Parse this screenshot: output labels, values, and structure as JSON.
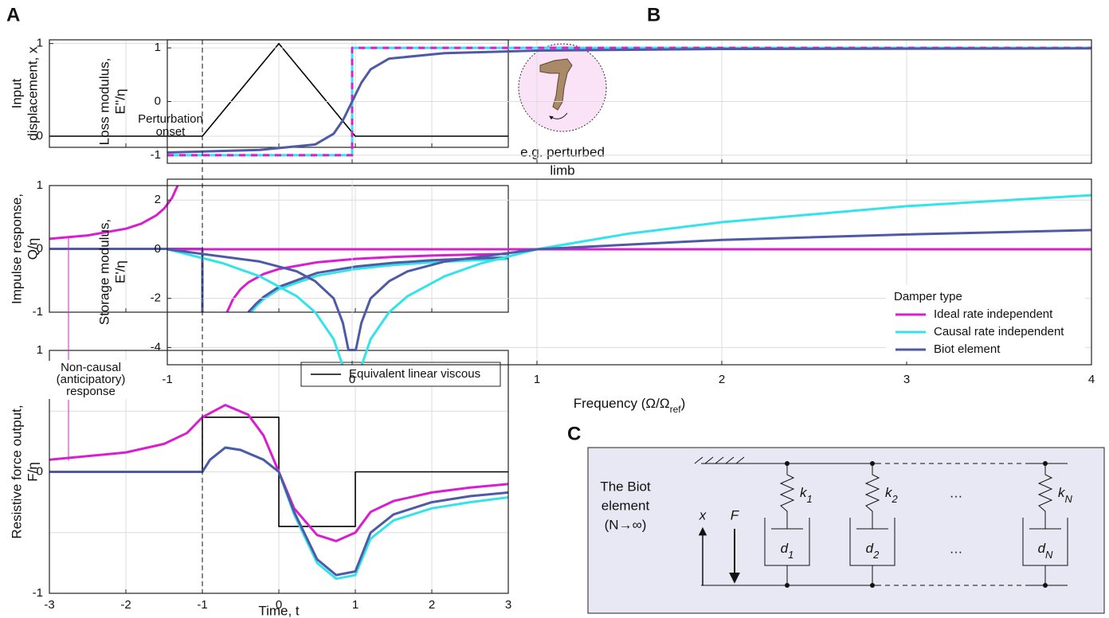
{
  "panel_labels": [
    "A",
    "B",
    "C"
  ],
  "limb_caption": [
    "e.g. perturbed",
    "limb"
  ],
  "chart_data": [
    {
      "type": "line",
      "ylabel": [
        "Input",
        "displacement, x"
      ],
      "xlim": [
        -3,
        3
      ],
      "xticks": [
        -3,
        -2,
        -1,
        0,
        1,
        2,
        3
      ],
      "ylim": [
        -0.12,
        1.04
      ],
      "yticks": [
        0,
        1
      ],
      "grid": true,
      "annotations": [
        {
          "text": [
            "Perturbation",
            "onset"
          ],
          "x": -1
        }
      ],
      "series": [
        {
          "color": "#000000",
          "x": [
            -3,
            -1,
            0,
            1,
            3
          ],
          "values": [
            0,
            0,
            1,
            0,
            0
          ]
        }
      ]
    },
    {
      "type": "line",
      "ylabel": [
        "Impulse response,",
        "Q/η"
      ],
      "xlim": [
        -3,
        3
      ],
      "xticks": [
        -3,
        -2,
        -1,
        0,
        1,
        2,
        3
      ],
      "ylim": [
        -1,
        1
      ],
      "yticks": [
        -1,
        0,
        1
      ],
      "grid": true,
      "series": [
        {
          "color": "#d81fcf",
          "x": [
            -3,
            -2.5,
            -2,
            -1.8,
            -1.6,
            -1.5,
            -1.4,
            -1.3,
            null,
            -0.7,
            -0.6,
            -0.5,
            -0.4,
            -0.2,
            0,
            0.5,
            1,
            1.5,
            2,
            2.5,
            3
          ],
          "values": [
            0.159,
            0.212,
            0.318,
            0.398,
            0.531,
            0.637,
            0.796,
            1.061,
            null,
            -1.061,
            -0.796,
            -0.637,
            -0.531,
            -0.398,
            -0.318,
            -0.212,
            -0.159,
            -0.127,
            -0.106,
            -0.091,
            -0.08
          ]
        },
        {
          "color": "#33e3ea",
          "x": [
            -3,
            -1,
            -1,
            null,
            -0.4,
            -0.3,
            -0.2,
            0,
            0.5,
            1,
            1.5,
            2,
            2.5,
            3
          ],
          "values": [
            0,
            0,
            -1,
            null,
            -1.061,
            -0.91,
            -0.796,
            -0.637,
            -0.424,
            -0.318,
            -0.255,
            -0.212,
            -0.182,
            -0.159
          ]
        },
        {
          "color": "#4f5aa6",
          "x": [
            -3,
            -1,
            -1,
            null,
            -0.4,
            -0.3,
            -0.2,
            0,
            0.5,
            1,
            1.5,
            2,
            2.5,
            3
          ],
          "values": [
            0,
            0,
            -1,
            null,
            -1.0,
            -0.87,
            -0.76,
            -0.6,
            -0.38,
            -0.28,
            -0.22,
            -0.18,
            -0.155,
            -0.135
          ]
        }
      ]
    },
    {
      "type": "line",
      "xlabel": "Time, t",
      "ylabel": [
        "Resistive force output,",
        "F/η"
      ],
      "xlim": [
        -3,
        3
      ],
      "xticks": [
        -3,
        -2,
        -1,
        0,
        1,
        2,
        3
      ],
      "ylim": [
        -1,
        1
      ],
      "yticks": [
        -1,
        0,
        1
      ],
      "yminor": [
        -0.5,
        0.5
      ],
      "grid": true,
      "legend": "upper right",
      "annotations": [
        {
          "text": [
            "Non-causal",
            "(anticipatory)",
            "response"
          ],
          "x": -2.75,
          "color": "#d81fcf"
        }
      ],
      "series": [
        {
          "name": "Equivalent linear viscous",
          "color": "#000000",
          "x": [
            -3,
            -1,
            -1,
            0,
            0,
            1,
            1,
            3
          ],
          "values": [
            0,
            0,
            0.45,
            0.45,
            -0.45,
            -0.45,
            0,
            0
          ]
        },
        {
          "color": "#d81fcf",
          "x": [
            -3,
            -2,
            -1.5,
            -1.2,
            -1,
            -0.7,
            -0.4,
            -0.2,
            0,
            0.2,
            0.5,
            0.75,
            1,
            1.2,
            1.5,
            2,
            2.5,
            3
          ],
          "values": [
            0.1,
            0.16,
            0.23,
            0.32,
            0.45,
            0.55,
            0.47,
            0.3,
            0,
            -0.3,
            -0.52,
            -0.57,
            -0.5,
            -0.33,
            -0.24,
            -0.17,
            -0.13,
            -0.1
          ]
        },
        {
          "color": "#33e3ea",
          "x": [
            -3,
            -1,
            -0.9,
            -0.7,
            -0.5,
            -0.2,
            0,
            0.2,
            0.5,
            0.75,
            1,
            1.2,
            1.5,
            2,
            2.5,
            3
          ],
          "values": [
            0,
            0,
            0.1,
            0.2,
            0.18,
            0.1,
            0,
            -0.35,
            -0.75,
            -0.88,
            -0.85,
            -0.55,
            -0.4,
            -0.3,
            -0.25,
            -0.21
          ]
        },
        {
          "color": "#4f5aa6",
          "x": [
            -3,
            -1,
            -0.9,
            -0.7,
            -0.5,
            -0.2,
            0,
            0.2,
            0.5,
            0.75,
            1,
            1.2,
            1.5,
            2,
            2.5,
            3
          ],
          "values": [
            0,
            0,
            0.1,
            0.2,
            0.18,
            0.1,
            0,
            -0.33,
            -0.72,
            -0.85,
            -0.82,
            -0.5,
            -0.35,
            -0.25,
            -0.2,
            -0.17
          ]
        }
      ]
    },
    {
      "type": "line",
      "ylabel": [
        "Loss modulus,",
        "E''/η"
      ],
      "xlim": [
        -1,
        4
      ],
      "xticks": [
        -1,
        0,
        1,
        2,
        3,
        4
      ],
      "ylim": [
        -1.15,
        1.15
      ],
      "yticks": [
        -1,
        0,
        1
      ],
      "grid": true,
      "series": [
        {
          "color": "#33e3ea",
          "dash": false,
          "x": [
            -1,
            0,
            0,
            4
          ],
          "values": [
            -1,
            -1,
            1,
            1
          ]
        },
        {
          "color": "#d81fcf",
          "dash": true,
          "x": [
            -1,
            0,
            0,
            4
          ],
          "values": [
            -1,
            -1,
            1,
            1
          ]
        },
        {
          "color": "#4f5aa6",
          "dash": false,
          "x": [
            -1,
            -0.5,
            -0.2,
            -0.1,
            -0.05,
            0,
            0.05,
            0.1,
            0.2,
            0.5,
            1,
            2,
            4
          ],
          "values": [
            -0.95,
            -0.9,
            -0.8,
            -0.6,
            -0.35,
            0,
            0.35,
            0.6,
            0.8,
            0.9,
            0.95,
            0.98,
            0.99
          ]
        }
      ]
    },
    {
      "type": "line",
      "xlabel": [
        "Frequency (Ω/Ω",
        "ref",
        ")"
      ],
      "ylabel": [
        "Storage modulus,",
        "E'/η"
      ],
      "xlim": [
        -1,
        4
      ],
      "xticks": [
        -1,
        0,
        1,
        2,
        3,
        4
      ],
      "ylim": [
        -4.7,
        2.85
      ],
      "yticks": [
        -4,
        -2,
        0,
        2
      ],
      "grid": true,
      "legend": "lower right",
      "legend_title": "Damper type",
      "series": [
        {
          "name": "Ideal rate independent",
          "color": "#d81fcf",
          "x": [
            -1,
            4
          ],
          "values": [
            0,
            0
          ]
        },
        {
          "name": "Causal rate independent",
          "color": "#33e3ea",
          "x": [
            -1,
            -0.7,
            -0.5,
            -0.3,
            -0.2,
            -0.1,
            -0.05,
            0.05,
            0.1,
            0.2,
            0.3,
            0.5,
            0.7,
            1,
            1.5,
            2,
            3,
            4
          ],
          "values": [
            0,
            -0.57,
            -1.1,
            -1.91,
            -2.56,
            -3.66,
            -4.76,
            -4.76,
            -3.66,
            -2.56,
            -1.91,
            -1.1,
            -0.57,
            0,
            0.64,
            1.1,
            1.75,
            2.2
          ]
        },
        {
          "name": "Biot element",
          "color": "#4f5aa6",
          "x": [
            -1,
            -0.5,
            -0.3,
            -0.2,
            -0.1,
            -0.05,
            -0.02,
            0,
            0.02,
            0.05,
            0.1,
            0.2,
            0.3,
            0.5,
            1,
            2,
            3,
            4
          ],
          "values": [
            0,
            -0.5,
            -0.9,
            -1.3,
            -2.0,
            -3.0,
            -4.1,
            -4.1,
            -4.1,
            -3.0,
            -2.0,
            -1.3,
            -0.9,
            -0.5,
            0,
            0.38,
            0.6,
            0.78
          ]
        }
      ]
    }
  ],
  "diagram": {
    "label": [
      "The Biot",
      "element",
      "(N→∞)"
    ],
    "x_label": "x",
    "force_label": "F",
    "springs": [
      {
        "symbol": "k",
        "subscript": "1"
      },
      {
        "symbol": "k",
        "subscript": "2"
      },
      {
        "symbol": "k",
        "subscript": "N"
      }
    ],
    "dampers": [
      {
        "symbol": "d",
        "subscript": "1"
      },
      {
        "symbol": "d",
        "subscript": "2"
      },
      {
        "symbol": "d",
        "subscript": "N"
      }
    ],
    "ellipsis": [
      "…",
      "…"
    ]
  }
}
